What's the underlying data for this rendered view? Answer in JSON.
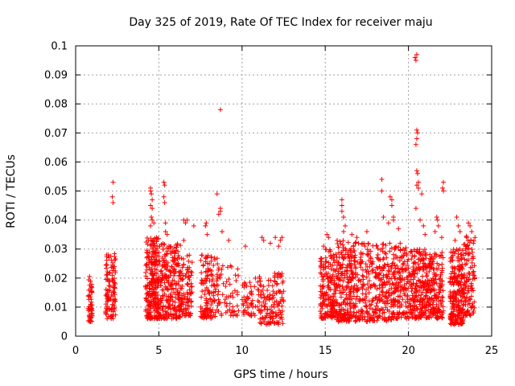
{
  "chart_data": {
    "type": "scatter",
    "title": "Day 325 of 2019, Rate Of TEC Index for receiver maju",
    "xlabel": "GPS time / hours",
    "ylabel": "ROTI / TECUs",
    "xlim": [
      0,
      25
    ],
    "ylim": [
      0,
      0.1
    ],
    "x_ticks": [
      0,
      5,
      10,
      15,
      20,
      25
    ],
    "x_tick_labels": [
      "0",
      "5",
      "10",
      "15",
      "20",
      "25"
    ],
    "y_ticks": [
      0,
      0.01,
      0.02,
      0.03,
      0.04,
      0.05,
      0.06,
      0.07,
      0.08,
      0.09,
      0.1
    ],
    "y_tick_labels": [
      "0",
      "0.01",
      "0.02",
      "0.03",
      "0.04",
      "0.05",
      "0.06",
      "0.07",
      "0.08",
      "0.09",
      "0.1"
    ],
    "grid": true,
    "marker": "+",
    "color": "#ff0000",
    "clusters": [
      {
        "x": [
          0.75,
          1.0
        ],
        "y": [
          0.005,
          0.021
        ],
        "n": 55
      },
      {
        "x": [
          1.8,
          2.4
        ],
        "y": [
          0.006,
          0.029
        ],
        "n": 110
      },
      {
        "x": [
          4.2,
          5.0
        ],
        "y": [
          0.006,
          0.034
        ],
        "n": 230
      },
      {
        "x": [
          5.0,
          6.3
        ],
        "y": [
          0.006,
          0.032
        ],
        "n": 250
      },
      {
        "x": [
          6.3,
          7.0
        ],
        "y": [
          0.007,
          0.028
        ],
        "n": 90
      },
      {
        "x": [
          7.5,
          8.6
        ],
        "y": [
          0.006,
          0.028
        ],
        "n": 140
      },
      {
        "x": [
          8.6,
          9.8
        ],
        "y": [
          0.007,
          0.025
        ],
        "n": 50
      },
      {
        "x": [
          10.0,
          11.0
        ],
        "y": [
          0.007,
          0.02
        ],
        "n": 50
      },
      {
        "x": [
          11.0,
          12.5
        ],
        "y": [
          0.004,
          0.022
        ],
        "n": 130
      },
      {
        "x": [
          14.7,
          15.6
        ],
        "y": [
          0.006,
          0.03
        ],
        "n": 170
      },
      {
        "x": [
          15.6,
          17.0
        ],
        "y": [
          0.005,
          0.033
        ],
        "n": 260
      },
      {
        "x": [
          17.0,
          19.0
        ],
        "y": [
          0.005,
          0.032
        ],
        "n": 270
      },
      {
        "x": [
          19.0,
          20.1
        ],
        "y": [
          0.006,
          0.031
        ],
        "n": 170
      },
      {
        "x": [
          20.1,
          21.2
        ],
        "y": [
          0.006,
          0.03
        ],
        "n": 220
      },
      {
        "x": [
          21.2,
          22.1
        ],
        "y": [
          0.006,
          0.029
        ],
        "n": 160
      },
      {
        "x": [
          22.5,
          23.3
        ],
        "y": [
          0.004,
          0.03
        ],
        "n": 230
      },
      {
        "x": [
          23.3,
          24.0
        ],
        "y": [
          0.007,
          0.035
        ],
        "n": 110
      }
    ],
    "outliers": [
      [
        2.25,
        0.053
      ],
      [
        2.2,
        0.048
      ],
      [
        2.25,
        0.046
      ],
      [
        1.95,
        0.028
      ],
      [
        2.0,
        0.027
      ],
      [
        4.5,
        0.051
      ],
      [
        4.5,
        0.05
      ],
      [
        4.55,
        0.049
      ],
      [
        4.6,
        0.047
      ],
      [
        4.5,
        0.045
      ],
      [
        4.6,
        0.044
      ],
      [
        4.55,
        0.041
      ],
      [
        4.6,
        0.04
      ],
      [
        4.7,
        0.039
      ],
      [
        4.5,
        0.038
      ],
      [
        5.3,
        0.053
      ],
      [
        5.35,
        0.052
      ],
      [
        5.3,
        0.048
      ],
      [
        5.35,
        0.046
      ],
      [
        5.4,
        0.039
      ],
      [
        5.4,
        0.036
      ],
      [
        5.5,
        0.035
      ],
      [
        6.5,
        0.04
      ],
      [
        6.6,
        0.039
      ],
      [
        6.7,
        0.04
      ],
      [
        6.5,
        0.033
      ],
      [
        7.1,
        0.038
      ],
      [
        7.85,
        0.039
      ],
      [
        7.8,
        0.038
      ],
      [
        7.9,
        0.035
      ],
      [
        8.5,
        0.049
      ],
      [
        8.7,
        0.078
      ],
      [
        8.7,
        0.044
      ],
      [
        8.7,
        0.043
      ],
      [
        8.6,
        0.042
      ],
      [
        8.8,
        0.036
      ],
      [
        9.2,
        0.033
      ],
      [
        10.2,
        0.031
      ],
      [
        11.2,
        0.034
      ],
      [
        11.3,
        0.033
      ],
      [
        12.0,
        0.034
      ],
      [
        12.3,
        0.033
      ],
      [
        12.4,
        0.034
      ],
      [
        12.2,
        0.031
      ],
      [
        11.7,
        0.032
      ],
      [
        15.1,
        0.035
      ],
      [
        15.2,
        0.034
      ],
      [
        14.9,
        0.031
      ],
      [
        16.0,
        0.047
      ],
      [
        16.0,
        0.045
      ],
      [
        16.0,
        0.043
      ],
      [
        16.1,
        0.041
      ],
      [
        16.2,
        0.038
      ],
      [
        16.1,
        0.036
      ],
      [
        16.6,
        0.035
      ],
      [
        16.9,
        0.034
      ],
      [
        17.5,
        0.036
      ],
      [
        18.4,
        0.054
      ],
      [
        18.4,
        0.05
      ],
      [
        18.5,
        0.041
      ],
      [
        18.9,
        0.048
      ],
      [
        19.0,
        0.047
      ],
      [
        19.0,
        0.045
      ],
      [
        19.1,
        0.041
      ],
      [
        19.1,
        0.04
      ],
      [
        18.8,
        0.039
      ],
      [
        19.4,
        0.037
      ],
      [
        19.5,
        0.032
      ],
      [
        20.4,
        0.096
      ],
      [
        20.45,
        0.095
      ],
      [
        20.5,
        0.097
      ],
      [
        20.5,
        0.071
      ],
      [
        20.55,
        0.07
      ],
      [
        20.5,
        0.068
      ],
      [
        20.45,
        0.066
      ],
      [
        20.5,
        0.057
      ],
      [
        20.55,
        0.056
      ],
      [
        20.6,
        0.053
      ],
      [
        20.5,
        0.052
      ],
      [
        20.6,
        0.051
      ],
      [
        20.45,
        0.044
      ],
      [
        20.8,
        0.049
      ],
      [
        20.7,
        0.04
      ],
      [
        20.9,
        0.038
      ],
      [
        21.0,
        0.035
      ],
      [
        21.7,
        0.041
      ],
      [
        21.75,
        0.04
      ],
      [
        21.8,
        0.038
      ],
      [
        21.6,
        0.036
      ],
      [
        22.1,
        0.053
      ],
      [
        22.05,
        0.051
      ],
      [
        22.1,
        0.05
      ],
      [
        22.0,
        0.034
      ],
      [
        22.9,
        0.041
      ],
      [
        23.0,
        0.038
      ],
      [
        23.1,
        0.036
      ],
      [
        22.8,
        0.033
      ],
      [
        23.6,
        0.039
      ],
      [
        23.7,
        0.038
      ],
      [
        23.8,
        0.036
      ],
      [
        23.5,
        0.034
      ],
      [
        24.0,
        0.034
      ],
      [
        23.9,
        0.032
      ]
    ]
  }
}
